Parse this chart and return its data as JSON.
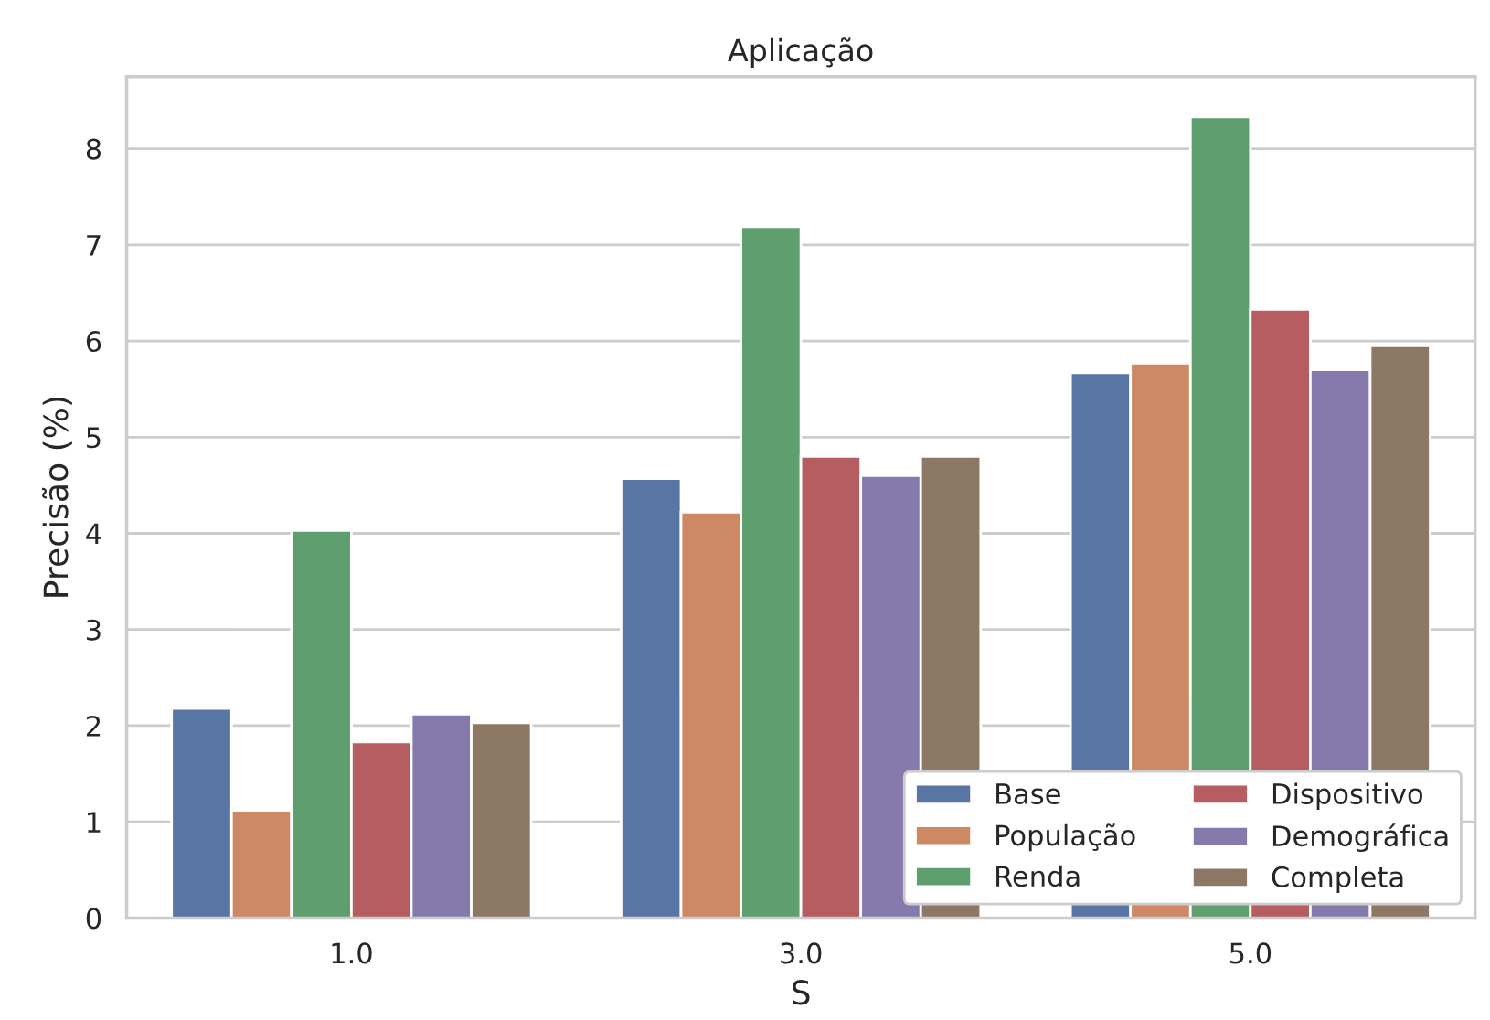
{
  "chart_data": {
    "type": "bar",
    "title": "Aplicação",
    "xlabel": "S",
    "ylabel": "Precisão (%)",
    "categories": [
      "1.0",
      "3.0",
      "5.0"
    ],
    "series": [
      {
        "name": "Base",
        "color": "#5975a4",
        "values": [
          2.18,
          4.57,
          5.67
        ]
      },
      {
        "name": "População",
        "color": "#cc8963",
        "values": [
          1.12,
          4.22,
          5.77
        ]
      },
      {
        "name": "Renda",
        "color": "#5f9e6e",
        "values": [
          4.03,
          7.18,
          8.33
        ]
      },
      {
        "name": "Dispositivo",
        "color": "#b55d60",
        "values": [
          1.83,
          4.8,
          6.33
        ]
      },
      {
        "name": "Demográfica",
        "color": "#857aab",
        "values": [
          2.12,
          4.6,
          5.7
        ]
      },
      {
        "name": "Completa",
        "color": "#8d7866",
        "values": [
          2.03,
          4.8,
          5.95
        ]
      }
    ],
    "ylim": [
      0,
      8.75
    ],
    "yticks": [
      0,
      1,
      2,
      3,
      4,
      5,
      6,
      7,
      8
    ],
    "grid": "y",
    "legend": "bottom right"
  }
}
